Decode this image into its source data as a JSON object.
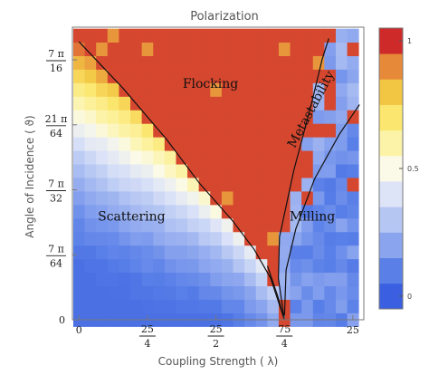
{
  "chart_data": {
    "type": "heatmap",
    "title": "Polarization",
    "xlabel": "Coupling Strength ( λ)",
    "ylabel": "Angle of Incidence ( ϑ)",
    "xlim": [
      -0.6,
      26
    ],
    "ylim": [
      0,
      0.3536
    ],
    "grid": false,
    "x_ticks": [
      {
        "value": 0,
        "label": "0"
      },
      {
        "value": 6.25,
        "num": "25",
        "den": "4"
      },
      {
        "value": 12.5,
        "num": "25",
        "den": "2"
      },
      {
        "value": 18.75,
        "num": "75",
        "den": "4"
      },
      {
        "value": 25,
        "label": "25"
      }
    ],
    "y_ticks": [
      {
        "value": 0,
        "label": "0"
      },
      {
        "value": 0.0785,
        "num": "7 π",
        "den": "64"
      },
      {
        "value": 0.1571,
        "num": "7 π",
        "den": "32"
      },
      {
        "value": 0.2356,
        "num": "21 π",
        "den": "64"
      },
      {
        "value": 0.3142,
        "num": "7 π",
        "den": "16"
      }
    ],
    "grid_cols": 25,
    "grid_rows": 22,
    "x_range": [
      0,
      25
    ],
    "y_range": [
      0,
      0.3436
    ],
    "colorbar": {
      "range": [
        0,
        1
      ],
      "ticks": [
        {
          "value": 0,
          "label": "0"
        },
        {
          "value": 0.5,
          "label": "0.5"
        },
        {
          "value": 1,
          "label": "1"
        }
      ],
      "colors": [
        "#3a5fe0",
        "#5a80e8",
        "#8aa4ee",
        "#b5c6f3",
        "#dde4f8",
        "#fbfae8",
        "#fcf3a8",
        "#fbe770",
        "#f2c543",
        "#e68a3a",
        "#cf2a2a"
      ]
    },
    "regions": [
      {
        "label": "Flocking",
        "x": 12,
        "y": 0.28
      },
      {
        "label": "Metastability",
        "x": 21.5,
        "y": 0.252
      },
      {
        "label": "Scattering",
        "x": 4.8,
        "y": 0.12
      },
      {
        "label": "Milling",
        "x": 21.3,
        "y": 0.12
      }
    ],
    "boundaries": [
      {
        "name": "scattering-flocking",
        "points": [
          [
            0,
            0.336
          ],
          [
            4,
            0.28
          ],
          [
            8,
            0.218
          ],
          [
            11,
            0.165
          ],
          [
            14,
            0.12
          ],
          [
            16,
            0.085
          ],
          [
            17.5,
            0.05
          ],
          [
            18.75,
            0
          ]
        ]
      },
      {
        "name": "flocking-metastability",
        "points": [
          [
            18.75,
            0
          ],
          [
            18.2,
            0.05
          ],
          [
            18.3,
            0.1
          ],
          [
            19.6,
            0.18
          ],
          [
            21.2,
            0.26
          ],
          [
            22.2,
            0.315
          ],
          [
            22.8,
            0.34
          ]
        ]
      },
      {
        "name": "metastability-milling",
        "points": [
          [
            18.75,
            0
          ],
          [
            18.9,
            0.06
          ],
          [
            19.8,
            0.11
          ],
          [
            21.5,
            0.17
          ],
          [
            23.8,
            0.225
          ],
          [
            25.6,
            0.26
          ]
        ]
      },
      {
        "name": "scattering-milling",
        "points": [
          [
            18.75,
            0
          ],
          [
            18.1,
            0.03
          ],
          [
            17.2,
            0.065
          ]
        ]
      }
    ]
  }
}
